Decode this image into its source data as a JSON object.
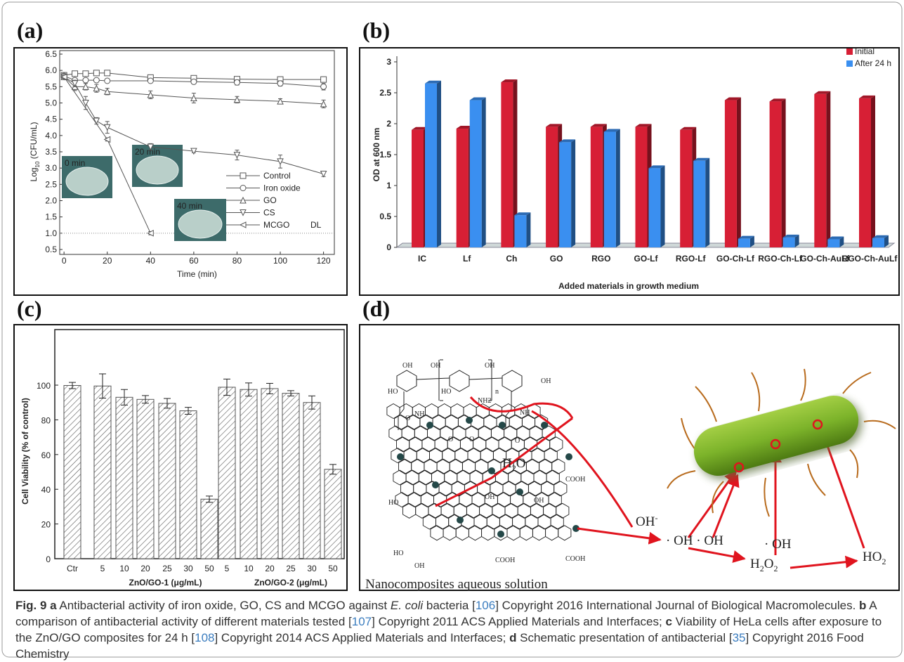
{
  "chart_data": [
    {
      "type": "line",
      "panel_label": "(a)",
      "xlabel": "Time (min)",
      "ylabel": {
        "main": "Log",
        "sub": "10",
        "rest": " (CFU/mL)"
      },
      "xlim": [
        -2,
        125
      ],
      "ylim": [
        0.5,
        6.5
      ],
      "xticks": [
        0,
        20,
        40,
        60,
        80,
        100,
        120
      ],
      "yticks": [
        0.5,
        {
          "value": 1,
          "label": "1.0"
        },
        1.5,
        {
          "value": 2,
          "label": "2.0"
        },
        2.5,
        {
          "value": 3,
          "label": "3.0"
        },
        3.5,
        {
          "value": 4,
          "label": "4.0"
        },
        4.5,
        {
          "value": 5,
          "label": "5.0"
        },
        5.5,
        {
          "value": 6,
          "label": "6.0"
        },
        6.5
      ],
      "series": [
        {
          "name": "Control",
          "color": "#555555",
          "marker": "square",
          "x": [
            0,
            5,
            10,
            15,
            20,
            40,
            60,
            80,
            100,
            120
          ],
          "values": [
            5.85,
            5.9,
            5.9,
            5.92,
            5.92,
            5.78,
            5.76,
            5.73,
            5.72,
            5.72
          ],
          "errors": [
            0.05,
            0.05,
            0.05,
            0.05,
            0.05,
            0.08,
            0.08,
            0.08,
            0.08,
            0.08
          ]
        },
        {
          "name": "Iron oxide",
          "color": "#555555",
          "marker": "circle",
          "x": [
            0,
            5,
            10,
            15,
            20,
            40,
            60,
            80,
            100,
            120
          ],
          "values": [
            5.83,
            5.7,
            5.7,
            5.7,
            5.68,
            5.68,
            5.65,
            5.63,
            5.6,
            5.5
          ],
          "errors": [
            0.05,
            0.05,
            0.05,
            0.05,
            0.05,
            0.06,
            0.06,
            0.08,
            0.08,
            0.1
          ]
        },
        {
          "name": "GO",
          "color": "#555555",
          "marker": "triangle-up",
          "x": [
            0,
            5,
            10,
            15,
            20,
            40,
            60,
            80,
            100,
            120
          ],
          "values": [
            5.8,
            5.5,
            5.5,
            5.45,
            5.35,
            5.25,
            5.15,
            5.1,
            5.05,
            4.97
          ],
          "errors": [
            0.05,
            0.12,
            0.1,
            0.12,
            0.1,
            0.12,
            0.15,
            0.1,
            0.08,
            0.12
          ]
        },
        {
          "name": "CS",
          "color": "#555555",
          "marker": "triangle-down",
          "x": [
            0,
            5,
            10,
            15,
            20,
            40,
            60,
            80,
            100,
            120
          ],
          "values": [
            5.8,
            5.6,
            5.0,
            4.45,
            4.25,
            3.65,
            3.52,
            3.4,
            3.2,
            2.82
          ],
          "errors": [
            0.05,
            0.1,
            0.2,
            0.1,
            0.18,
            0.1,
            0.05,
            0.15,
            0.2,
            0.08
          ]
        },
        {
          "name": "MCGO",
          "color": "#555555",
          "marker": "triangle-left",
          "x": [
            0,
            20,
            40
          ],
          "values": [
            5.8,
            3.88,
            1.0
          ],
          "errors": [
            0.05,
            0.05,
            0.05
          ]
        }
      ],
      "annotations": [
        "0 min",
        "20 min",
        "40 min"
      ],
      "dl": {
        "label": "DL",
        "value": 1
      }
    },
    {
      "type": "bar3d",
      "panel_label": "(b)",
      "ylabel": "OD at 600 nm",
      "xlabel": "Added materials in growth medium",
      "categories": [
        "IC",
        "Lf",
        "Ch",
        "GO",
        "RGO",
        "GO-Lf",
        "RGO-Lf",
        "GO-Ch-Lf",
        "RGO-Ch-Lf",
        "GO-Ch-AuLf",
        "RGO-Ch-AuLf"
      ],
      "ylim": [
        0,
        3
      ],
      "yticks": [
        0,
        0.5,
        1,
        1.5,
        2,
        2.5,
        3
      ],
      "series": [
        {
          "name": "Initial",
          "color": "#d71f35",
          "values": [
            1.9,
            1.92,
            2.67,
            1.95,
            1.95,
            1.95,
            1.9,
            2.38,
            2.36,
            2.48,
            2.41
          ]
        },
        {
          "name": "After 24 h",
          "color": "#3a8ff0",
          "values": [
            2.65,
            2.38,
            0.52,
            1.7,
            1.87,
            1.28,
            1.4,
            0.14,
            0.16,
            0.13,
            0.15
          ]
        }
      ]
    },
    {
      "type": "bar",
      "panel_label": "(c)",
      "ylabel": "Cell Viability (% of control)",
      "color": "#555555",
      "categories": [
        "Ctr",
        "5",
        "10",
        "20",
        "25",
        "30",
        "50",
        "5",
        "10",
        "20",
        "25",
        "30",
        "50"
      ],
      "values": [
        99.8,
        99.5,
        93,
        91.8,
        89.5,
        85.2,
        34.3,
        98.8,
        97.5,
        98,
        95.3,
        90,
        51.5
      ],
      "errors": [
        1.8,
        7,
        4.5,
        2.2,
        2.8,
        2,
        1.8,
        4.7,
        3.8,
        3,
        1.5,
        3.8,
        2.8
      ],
      "ylim": [
        0,
        132
      ],
      "yticks": [
        0,
        20,
        40,
        60,
        80,
        100
      ],
      "groups": [
        "ZnO/GO-1 (μg/mL)",
        "ZnO/GO-2 (μg/mL)"
      ]
    }
  ],
  "diagram": {
    "panel_label": "(d)",
    "water": [
      "H",
      "2",
      "O"
    ],
    "hydroxide": [
      "OH",
      "-"
    ],
    "radicals": "· OH · OH",
    "radical": "· OH",
    "peroxide": [
      "H",
      "2",
      "O",
      "2"
    ],
    "hydroperoxyl": [
      "HO",
      "2"
    ],
    "caption": "Nanocomposites aqueous solution",
    "chem_labels": [
      "OH",
      "HO",
      "OH",
      "HO",
      "OH",
      "OH",
      "NH",
      "NH",
      "NH2",
      "n",
      "O",
      "O",
      "O",
      "OH",
      "OH",
      "HO",
      "HO",
      "OH",
      "COOH",
      "COOH",
      "COOH",
      "O"
    ]
  },
  "caption": [
    "Fig. 9",
    " a",
    " Antibacterial activity of iron oxide, GO, CS and MCGO against ",
    "E. coli",
    " bacteria [",
    "106",
    "] Copyright 2016 International Journal of Biological Macromolecules. ",
    "b",
    " A comparison of antibacterial activity of different materials tested [",
    "107",
    "] Copyright 2011 ACS Applied Materials and Interfaces; ",
    "c",
    " Viability of HeLa cells after exposure to the ZnO/GO composites for 24 h [",
    "108",
    "] Copyright 2014 ACS Applied Materials and Interfaces; ",
    "d",
    " Schematic presentation of antibacterial [",
    "35",
    "] Copyright 2016 Food Chemistry"
  ]
}
